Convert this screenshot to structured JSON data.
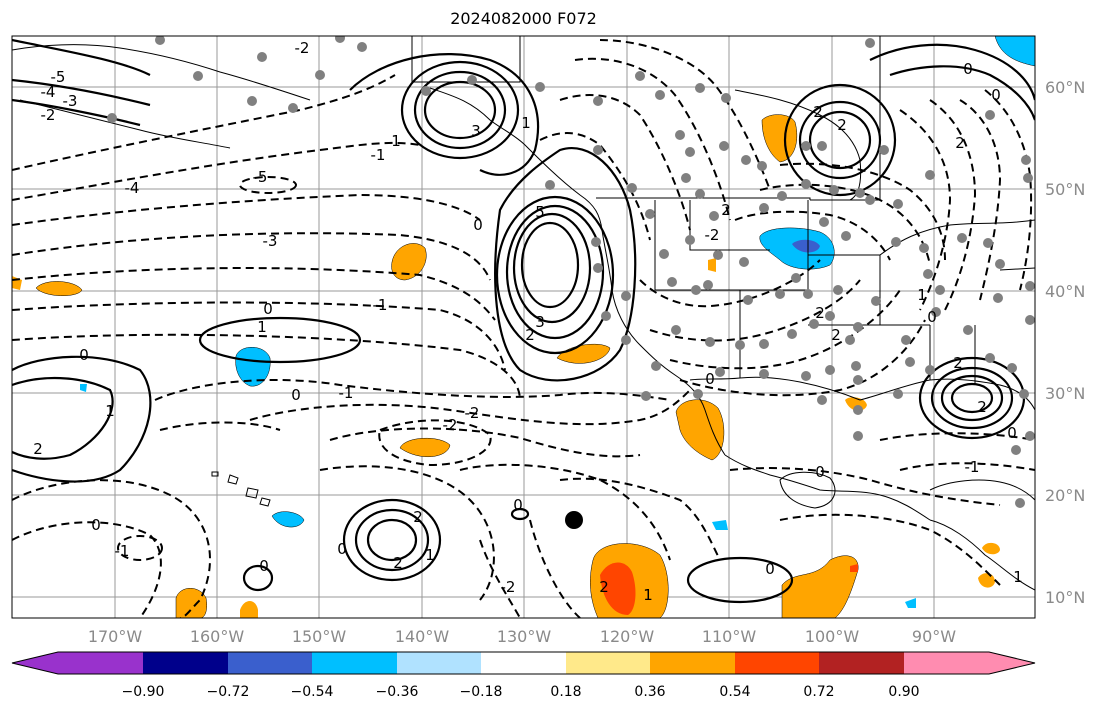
{
  "title": "2024082000 F072",
  "map": {
    "lon_labels": [
      "170°W",
      "160°W",
      "150°W",
      "140°W",
      "130°W",
      "120°W",
      "110°W",
      "100°W",
      "90°W"
    ],
    "lat_labels": [
      "60°N",
      "50°N",
      "40°N",
      "30°N",
      "20°N",
      "10°N"
    ],
    "contour_labels": [
      "-5",
      "-4",
      "-3",
      "-2",
      "-1",
      "0",
      "1",
      "2",
      "3",
      "5"
    ]
  },
  "colorbar": {
    "ticks": [
      "−0.90",
      "−0.72",
      "−0.54",
      "−0.36",
      "−0.18",
      "0.18",
      "0.36",
      "0.54",
      "0.72",
      "0.90"
    ],
    "colors": [
      "#9932cc",
      "#00008b",
      "#3a5fcd",
      "#00bfff",
      "#b0e2ff",
      "#ffffff",
      "#ffe98a",
      "#ffa500",
      "#ff4500",
      "#b22222",
      "#ff8cb0"
    ]
  }
}
